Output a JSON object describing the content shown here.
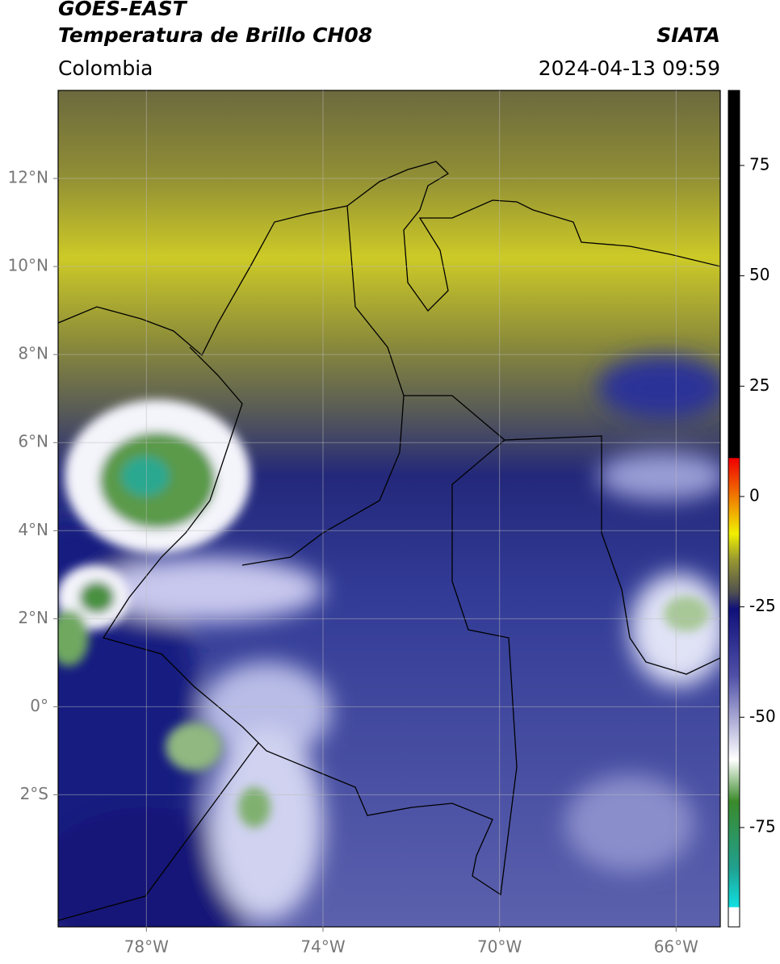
{
  "header": {
    "title": "GOES-EAST",
    "subtitle": "Temperatura de Brillo CH08",
    "source": "SIATA",
    "region": "Colombia",
    "timestamp": "2024-04-13 09:59"
  },
  "map": {
    "xlim": [
      -80,
      -65
    ],
    "ylim": [
      -5,
      14
    ],
    "xticks": [
      {
        "value": -78,
        "label": "78°W"
      },
      {
        "value": -74,
        "label": "74°W"
      },
      {
        "value": -70,
        "label": "70°W"
      },
      {
        "value": -66,
        "label": "66°W"
      }
    ],
    "yticks": [
      {
        "value": 12,
        "label": "12°N"
      },
      {
        "value": 10,
        "label": "10°N"
      },
      {
        "value": 8,
        "label": "8°N"
      },
      {
        "value": 6,
        "label": "6°N"
      },
      {
        "value": 4,
        "label": "4°N"
      },
      {
        "value": 2,
        "label": "2°N"
      },
      {
        "value": 0,
        "label": "0°"
      },
      {
        "value": -2,
        "label": "2°S"
      }
    ],
    "grid": true
  },
  "colorbar": {
    "lim": [
      -97.5,
      92
    ],
    "ticks": [
      75,
      50,
      25,
      0,
      -25,
      -50,
      -75
    ]
  }
}
